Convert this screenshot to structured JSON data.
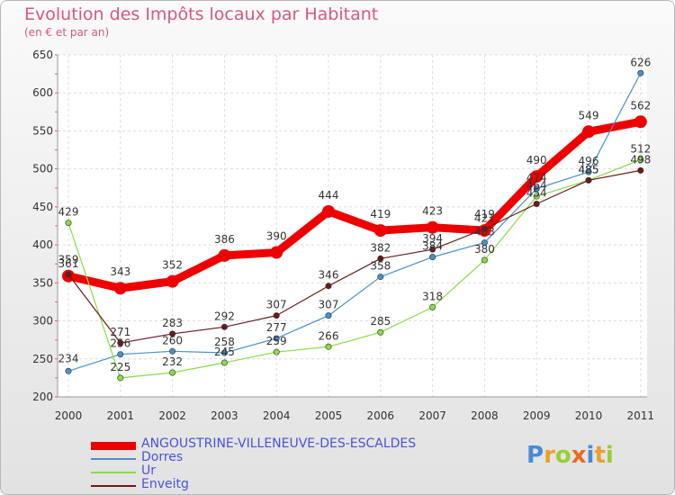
{
  "title": "Evolution des Impôts locaux par Habitant",
  "subtitle": "(en € et par an)",
  "logo_text": "Proxiti",
  "chart_data": {
    "type": "line",
    "x": [
      "2000",
      "2001",
      "2002",
      "2003",
      "2004",
      "2005",
      "2006",
      "2007",
      "2008",
      "2009",
      "2010",
      "2011"
    ],
    "ylim": [
      200,
      650
    ],
    "yticks": [
      "200",
      "250",
      "300",
      "350",
      "400",
      "450",
      "500",
      "550",
      "600",
      "650"
    ],
    "series": [
      {
        "name": "ANGOUSTRINE-VILLENEUVE-DES-ESCALDES",
        "color": "#ee0000",
        "values": [
          359,
          343,
          352,
          386,
          390,
          444,
          419,
          423,
          419,
          490,
          549,
          562
        ],
        "labels": [
          "359",
          "343",
          "352",
          "386",
          "390",
          "444",
          "419",
          "423",
          "419",
          "490",
          "549",
          "562"
        ]
      },
      {
        "name": "Dorres",
        "color": "#4a90c8",
        "values": [
          234,
          256,
          260,
          258,
          277,
          307,
          358,
          384,
          403,
          474,
          496,
          626
        ],
        "labels": [
          "234",
          "256",
          "260",
          "258",
          "277",
          "307",
          "358",
          "384",
          "403",
          "474",
          "496",
          "626"
        ]
      },
      {
        "name": "Ur",
        "color": "#88dd44",
        "values": [
          429,
          225,
          232,
          245,
          259,
          266,
          285,
          318,
          380,
          464,
          485,
          512
        ],
        "labels": [
          "429",
          "225",
          "232",
          "245",
          "259",
          "266",
          "285",
          "318",
          "380",
          "464",
          "485",
          "512"
        ]
      },
      {
        "name": "Enveitg",
        "color": "#6b1a1a",
        "values": [
          361,
          271,
          283,
          292,
          307,
          346,
          382,
          394,
          421,
          454,
          485,
          498
        ],
        "labels": [
          "361",
          "271",
          "283",
          "292",
          "307",
          "346",
          "382",
          "394",
          "421",
          "454",
          "485",
          "498"
        ]
      }
    ]
  }
}
